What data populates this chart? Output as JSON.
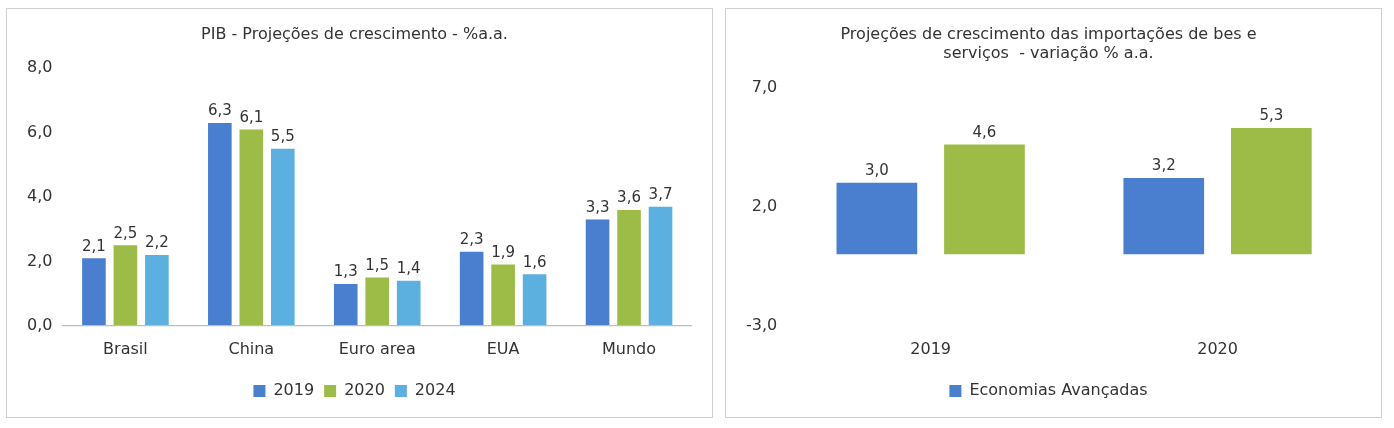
{
  "chart_data": [
    {
      "type": "bar",
      "title": "PIB - Projeções de crescimento - %a.a.",
      "categories": [
        "Brasil",
        "China",
        "Euro area",
        "EUA",
        "Mundo"
      ],
      "series": [
        {
          "name": "2019",
          "color": "#4a7fd0",
          "values": [
            2.1,
            6.3,
            1.3,
            2.3,
            3.3
          ],
          "value_labels": [
            "2,1",
            "6,3",
            "1,3",
            "2,3",
            "3,3"
          ]
        },
        {
          "name": "2020",
          "color": "#9dbb47",
          "values": [
            2.5,
            6.1,
            1.5,
            1.9,
            3.6
          ],
          "value_labels": [
            "2,5",
            "6,1",
            "1,5",
            "1,9",
            "3,6"
          ]
        },
        {
          "name": "2024",
          "color": "#5bb0e0",
          "values": [
            2.2,
            5.5,
            1.4,
            1.6,
            3.7
          ],
          "value_labels": [
            "2,2",
            "5,5",
            "1,4",
            "1,6",
            "3,7"
          ]
        }
      ],
      "ylim": [
        0,
        8
      ],
      "yticks": [
        {
          "value": 0,
          "label": "0,0"
        },
        {
          "value": 2,
          "label": "2,0"
        },
        {
          "value": 4,
          "label": "4,0"
        },
        {
          "value": 6,
          "label": "6,0"
        },
        {
          "value": 8,
          "label": "8,0"
        }
      ],
      "grid": false,
      "legend": "bottom"
    },
    {
      "type": "bar",
      "title": "Projeções de crescimento das importações de bes e serviços  - variação % a.a.",
      "categories": [
        "2019",
        "2020"
      ],
      "series": [
        {
          "name": "Economias Avançadas",
          "color": "#4a7fd0",
          "values": [
            3.0,
            3.2
          ],
          "value_labels": [
            "3,0",
            "3,2"
          ]
        },
        {
          "color": "#9dbb47",
          "values": [
            4.6,
            5.3
          ],
          "value_labels": [
            "4,6",
            "5,3"
          ]
        }
      ],
      "ylim": [
        -3,
        7
      ],
      "yticks": [
        {
          "value": -3,
          "label": "-3,0"
        },
        {
          "value": 2,
          "label": "2,0"
        },
        {
          "value": 7,
          "label": "7,0"
        }
      ],
      "grid": false,
      "legend": "bottom"
    }
  ]
}
